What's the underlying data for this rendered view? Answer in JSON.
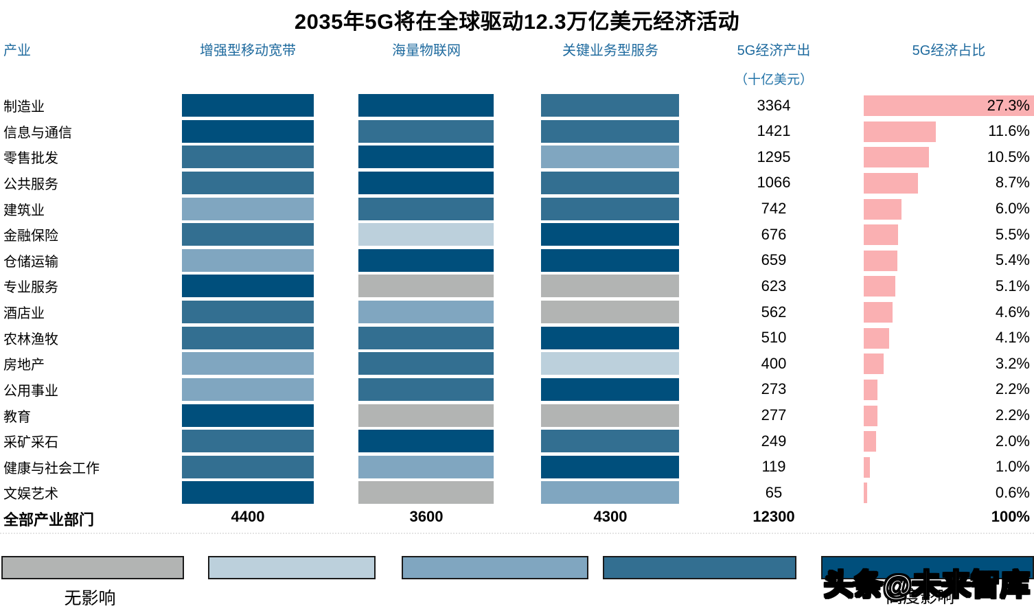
{
  "title": "2035年5G将在全球驱动12.3万亿美元经济活动",
  "header": {
    "industry": "产业",
    "embb": "增强型移动宽带",
    "miot": "海量物联网",
    "mcs": "关键业务型服务",
    "output": "5G经济产出",
    "output_unit": "（十亿美元）",
    "share": "5G经济占比"
  },
  "colors": {
    "header_blue": "#1e6a9e",
    "share_bar_pink": "#fab0b2",
    "impact_none": "#b2b4b3",
    "impact_very_low": "#bcd0dc",
    "impact_low": "#80a6c0",
    "impact_medium": "#336f91",
    "impact_high": "#004f7c"
  },
  "legend": {
    "no_impact_label": "无影响",
    "high_impact_label": "高度影响",
    "levels": [
      "none",
      "very_low",
      "low",
      "medium",
      "high"
    ]
  },
  "watermark": "头条@未来智库",
  "chart_data": {
    "type": "table",
    "title": "2035年5G将在全球驱动12.3万亿美元经济活动",
    "categories": [
      "制造业",
      "信息与通信",
      "零售批发",
      "公共服务",
      "建筑业",
      "金融保险",
      "仓储运输",
      "专业服务",
      "酒店业",
      "农林渔牧",
      "房地产",
      "公用事业",
      "教育",
      "采矿采石",
      "健康与社会工作",
      "文娱艺术"
    ],
    "series": [
      {
        "name": "增强型移动宽带",
        "kind": "impact_level",
        "values": [
          "high",
          "high",
          "medium",
          "medium",
          "low",
          "medium",
          "low",
          "high",
          "medium",
          "medium",
          "low",
          "low",
          "high",
          "medium",
          "medium",
          "high"
        ]
      },
      {
        "name": "海量物联网",
        "kind": "impact_level",
        "values": [
          "high",
          "medium",
          "high",
          "high",
          "medium",
          "very_low",
          "high",
          "none",
          "low",
          "medium",
          "medium",
          "medium",
          "none",
          "high",
          "low",
          "none"
        ]
      },
      {
        "name": "关键业务型服务",
        "kind": "impact_level",
        "values": [
          "medium",
          "medium",
          "low",
          "medium",
          "medium",
          "high",
          "high",
          "none",
          "none",
          "high",
          "very_low",
          "high",
          "none",
          "medium",
          "high",
          "low"
        ]
      },
      {
        "name": "5G经济产出（十亿美元）",
        "kind": "value",
        "values": [
          3364,
          1421,
          1295,
          1066,
          742,
          676,
          659,
          623,
          562,
          510,
          400,
          273,
          277,
          249,
          119,
          65
        ]
      },
      {
        "name": "5G经济占比",
        "kind": "bar",
        "unit": "%",
        "xlim": [
          0,
          27.3
        ],
        "values": [
          27.3,
          11.6,
          10.5,
          8.7,
          6.0,
          5.5,
          5.4,
          5.1,
          4.6,
          4.1,
          3.2,
          2.2,
          2.2,
          2.0,
          1.0,
          0.6
        ],
        "labels": [
          "27.3%",
          "11.6%",
          "10.5%",
          "8.7%",
          "6.0%",
          "5.5%",
          "5.4%",
          "5.1%",
          "4.6%",
          "4.1%",
          "3.2%",
          "2.2%",
          "2.2%",
          "2.0%",
          "1.0%",
          "0.6%"
        ]
      }
    ],
    "totals": {
      "label": "全部产业部门",
      "embb": "4400",
      "miot": "3600",
      "mcs": "4300",
      "output": "12300",
      "share": "100%"
    },
    "legend_position": "bottom"
  }
}
